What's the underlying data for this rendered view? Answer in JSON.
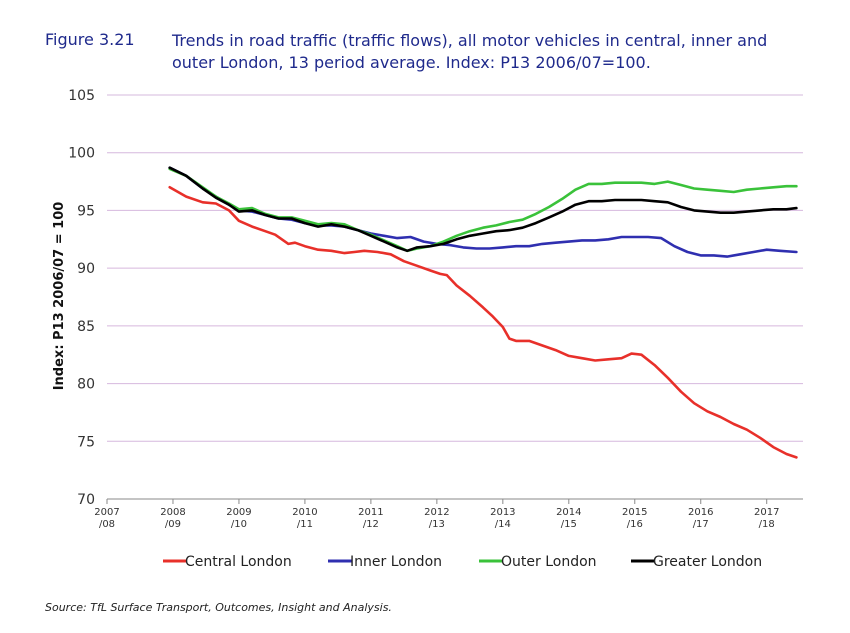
{
  "figure_label": "Figure 3.21",
  "title": "Trends in road traffic (traffic flows), all motor vehicles in central, inner and outer London, 13 period average. Index: P13 2006/07=100.",
  "source": "Source: TfL Surface Transport, Outcomes, Insight and Analysis.",
  "chart_data": {
    "type": "line",
    "ylabel": "Index: P13 2006/07 = 100",
    "xlabel": "",
    "ylim": [
      70,
      105
    ],
    "yticks": [
      70,
      75,
      80,
      85,
      90,
      95,
      100,
      105
    ],
    "xlim": [
      0,
      10.55
    ],
    "xticks": [
      {
        "x": 0,
        "l1": "2007",
        "l2": "/08"
      },
      {
        "x": 1,
        "l1": "2008",
        "l2": "/09"
      },
      {
        "x": 2,
        "l1": "2009",
        "l2": "/10"
      },
      {
        "x": 3,
        "l1": "2010",
        "l2": "/11"
      },
      {
        "x": 4,
        "l1": "2011",
        "l2": "/12"
      },
      {
        "x": 5,
        "l1": "2012",
        "l2": "/13"
      },
      {
        "x": 6,
        "l1": "2013",
        "l2": "/14"
      },
      {
        "x": 7,
        "l1": "2014",
        "l2": "/15"
      },
      {
        "x": 8,
        "l1": "2015",
        "l2": "/16"
      },
      {
        "x": 9,
        "l1": "2016",
        "l2": "/17"
      },
      {
        "x": 10,
        "l1": "2017",
        "l2": "/18"
      }
    ],
    "grid": "horizontal",
    "legend_position": "bottom",
    "series": [
      {
        "name": "Central London",
        "color": "#e8302a",
        "points": [
          [
            0.95,
            97.0
          ],
          [
            1.2,
            96.2
          ],
          [
            1.45,
            95.7
          ],
          [
            1.65,
            95.6
          ],
          [
            1.85,
            95.0
          ],
          [
            2.0,
            94.1
          ],
          [
            2.2,
            93.6
          ],
          [
            2.4,
            93.2
          ],
          [
            2.55,
            92.9
          ],
          [
            2.75,
            92.1
          ],
          [
            2.85,
            92.2
          ],
          [
            3.0,
            91.9
          ],
          [
            3.2,
            91.6
          ],
          [
            3.4,
            91.5
          ],
          [
            3.6,
            91.3
          ],
          [
            3.75,
            91.4
          ],
          [
            3.9,
            91.5
          ],
          [
            4.1,
            91.4
          ],
          [
            4.3,
            91.2
          ],
          [
            4.5,
            90.6
          ],
          [
            4.7,
            90.2
          ],
          [
            4.9,
            89.8
          ],
          [
            5.05,
            89.5
          ],
          [
            5.15,
            89.4
          ],
          [
            5.3,
            88.5
          ],
          [
            5.5,
            87.6
          ],
          [
            5.7,
            86.6
          ],
          [
            5.85,
            85.8
          ],
          [
            6.0,
            84.9
          ],
          [
            6.1,
            83.9
          ],
          [
            6.2,
            83.7
          ],
          [
            6.4,
            83.7
          ],
          [
            6.6,
            83.3
          ],
          [
            6.8,
            82.9
          ],
          [
            7.0,
            82.4
          ],
          [
            7.2,
            82.2
          ],
          [
            7.4,
            82.0
          ],
          [
            7.6,
            82.1
          ],
          [
            7.8,
            82.2
          ],
          [
            7.95,
            82.6
          ],
          [
            8.1,
            82.5
          ],
          [
            8.3,
            81.6
          ],
          [
            8.5,
            80.5
          ],
          [
            8.7,
            79.3
          ],
          [
            8.9,
            78.3
          ],
          [
            9.1,
            77.6
          ],
          [
            9.3,
            77.1
          ],
          [
            9.5,
            76.5
          ],
          [
            9.7,
            76.0
          ],
          [
            9.9,
            75.3
          ],
          [
            10.1,
            74.5
          ],
          [
            10.3,
            73.9
          ],
          [
            10.45,
            73.6
          ]
        ]
      },
      {
        "name": "Inner London",
        "color": "#2f2fb0",
        "points": [
          [
            0.95,
            98.7
          ],
          [
            1.2,
            98.0
          ],
          [
            1.45,
            96.9
          ],
          [
            1.65,
            96.2
          ],
          [
            1.85,
            95.5
          ],
          [
            2.0,
            95.0
          ],
          [
            2.2,
            94.9
          ],
          [
            2.4,
            94.6
          ],
          [
            2.6,
            94.3
          ],
          [
            2.8,
            94.2
          ],
          [
            3.0,
            93.9
          ],
          [
            3.2,
            93.7
          ],
          [
            3.4,
            93.7
          ],
          [
            3.6,
            93.6
          ],
          [
            3.8,
            93.3
          ],
          [
            4.0,
            93.0
          ],
          [
            4.2,
            92.8
          ],
          [
            4.4,
            92.6
          ],
          [
            4.6,
            92.7
          ],
          [
            4.8,
            92.3
          ],
          [
            5.0,
            92.1
          ],
          [
            5.2,
            92.0
          ],
          [
            5.4,
            91.8
          ],
          [
            5.6,
            91.7
          ],
          [
            5.8,
            91.7
          ],
          [
            6.0,
            91.8
          ],
          [
            6.2,
            91.9
          ],
          [
            6.4,
            91.9
          ],
          [
            6.6,
            92.1
          ],
          [
            6.8,
            92.2
          ],
          [
            7.0,
            92.3
          ],
          [
            7.2,
            92.4
          ],
          [
            7.4,
            92.4
          ],
          [
            7.6,
            92.5
          ],
          [
            7.8,
            92.7
          ],
          [
            8.0,
            92.7
          ],
          [
            8.2,
            92.7
          ],
          [
            8.4,
            92.6
          ],
          [
            8.6,
            91.9
          ],
          [
            8.8,
            91.4
          ],
          [
            9.0,
            91.1
          ],
          [
            9.2,
            91.1
          ],
          [
            9.4,
            91.0
          ],
          [
            9.6,
            91.2
          ],
          [
            9.8,
            91.4
          ],
          [
            10.0,
            91.6
          ],
          [
            10.2,
            91.5
          ],
          [
            10.45,
            91.4
          ]
        ]
      },
      {
        "name": "Outer London",
        "color": "#3ac23a",
        "points": [
          [
            0.95,
            98.6
          ],
          [
            1.2,
            98.0
          ],
          [
            1.45,
            97.0
          ],
          [
            1.65,
            96.2
          ],
          [
            1.85,
            95.6
          ],
          [
            2.0,
            95.1
          ],
          [
            2.2,
            95.2
          ],
          [
            2.4,
            94.7
          ],
          [
            2.6,
            94.4
          ],
          [
            2.8,
            94.4
          ],
          [
            3.0,
            94.1
          ],
          [
            3.2,
            93.8
          ],
          [
            3.4,
            93.9
          ],
          [
            3.6,
            93.8
          ],
          [
            3.8,
            93.3
          ],
          [
            4.0,
            92.9
          ],
          [
            4.2,
            92.4
          ],
          [
            4.4,
            91.9
          ],
          [
            4.55,
            91.5
          ],
          [
            4.7,
            91.7
          ],
          [
            4.9,
            91.9
          ],
          [
            5.1,
            92.3
          ],
          [
            5.3,
            92.8
          ],
          [
            5.5,
            93.2
          ],
          [
            5.7,
            93.5
          ],
          [
            5.9,
            93.7
          ],
          [
            6.1,
            94.0
          ],
          [
            6.3,
            94.2
          ],
          [
            6.5,
            94.7
          ],
          [
            6.7,
            95.3
          ],
          [
            6.9,
            96.0
          ],
          [
            7.1,
            96.8
          ],
          [
            7.3,
            97.3
          ],
          [
            7.5,
            97.3
          ],
          [
            7.7,
            97.4
          ],
          [
            7.9,
            97.4
          ],
          [
            8.1,
            97.4
          ],
          [
            8.3,
            97.3
          ],
          [
            8.5,
            97.5
          ],
          [
            8.7,
            97.2
          ],
          [
            8.9,
            96.9
          ],
          [
            9.1,
            96.8
          ],
          [
            9.3,
            96.7
          ],
          [
            9.5,
            96.6
          ],
          [
            9.7,
            96.8
          ],
          [
            9.9,
            96.9
          ],
          [
            10.1,
            97.0
          ],
          [
            10.3,
            97.1
          ],
          [
            10.45,
            97.1
          ]
        ]
      },
      {
        "name": "Greater London",
        "color": "#000000",
        "points": [
          [
            0.95,
            98.7
          ],
          [
            1.2,
            98.0
          ],
          [
            1.45,
            96.9
          ],
          [
            1.65,
            96.1
          ],
          [
            1.85,
            95.5
          ],
          [
            2.0,
            94.9
          ],
          [
            2.2,
            95.0
          ],
          [
            2.4,
            94.6
          ],
          [
            2.6,
            94.3
          ],
          [
            2.8,
            94.3
          ],
          [
            3.0,
            93.9
          ],
          [
            3.2,
            93.6
          ],
          [
            3.4,
            93.8
          ],
          [
            3.6,
            93.6
          ],
          [
            3.8,
            93.3
          ],
          [
            4.0,
            92.8
          ],
          [
            4.2,
            92.3
          ],
          [
            4.4,
            91.8
          ],
          [
            4.55,
            91.5
          ],
          [
            4.7,
            91.8
          ],
          [
            4.9,
            91.9
          ],
          [
            5.1,
            92.1
          ],
          [
            5.3,
            92.5
          ],
          [
            5.5,
            92.8
          ],
          [
            5.7,
            93.0
          ],
          [
            5.9,
            93.2
          ],
          [
            6.1,
            93.3
          ],
          [
            6.3,
            93.5
          ],
          [
            6.5,
            93.9
          ],
          [
            6.7,
            94.4
          ],
          [
            6.9,
            94.9
          ],
          [
            7.1,
            95.5
          ],
          [
            7.3,
            95.8
          ],
          [
            7.5,
            95.8
          ],
          [
            7.7,
            95.9
          ],
          [
            7.9,
            95.9
          ],
          [
            8.1,
            95.9
          ],
          [
            8.3,
            95.8
          ],
          [
            8.5,
            95.7
          ],
          [
            8.7,
            95.3
          ],
          [
            8.9,
            95.0
          ],
          [
            9.1,
            94.9
          ],
          [
            9.3,
            94.8
          ],
          [
            9.5,
            94.8
          ],
          [
            9.7,
            94.9
          ],
          [
            9.9,
            95.0
          ],
          [
            10.1,
            95.1
          ],
          [
            10.3,
            95.1
          ],
          [
            10.45,
            95.2
          ]
        ]
      }
    ]
  }
}
